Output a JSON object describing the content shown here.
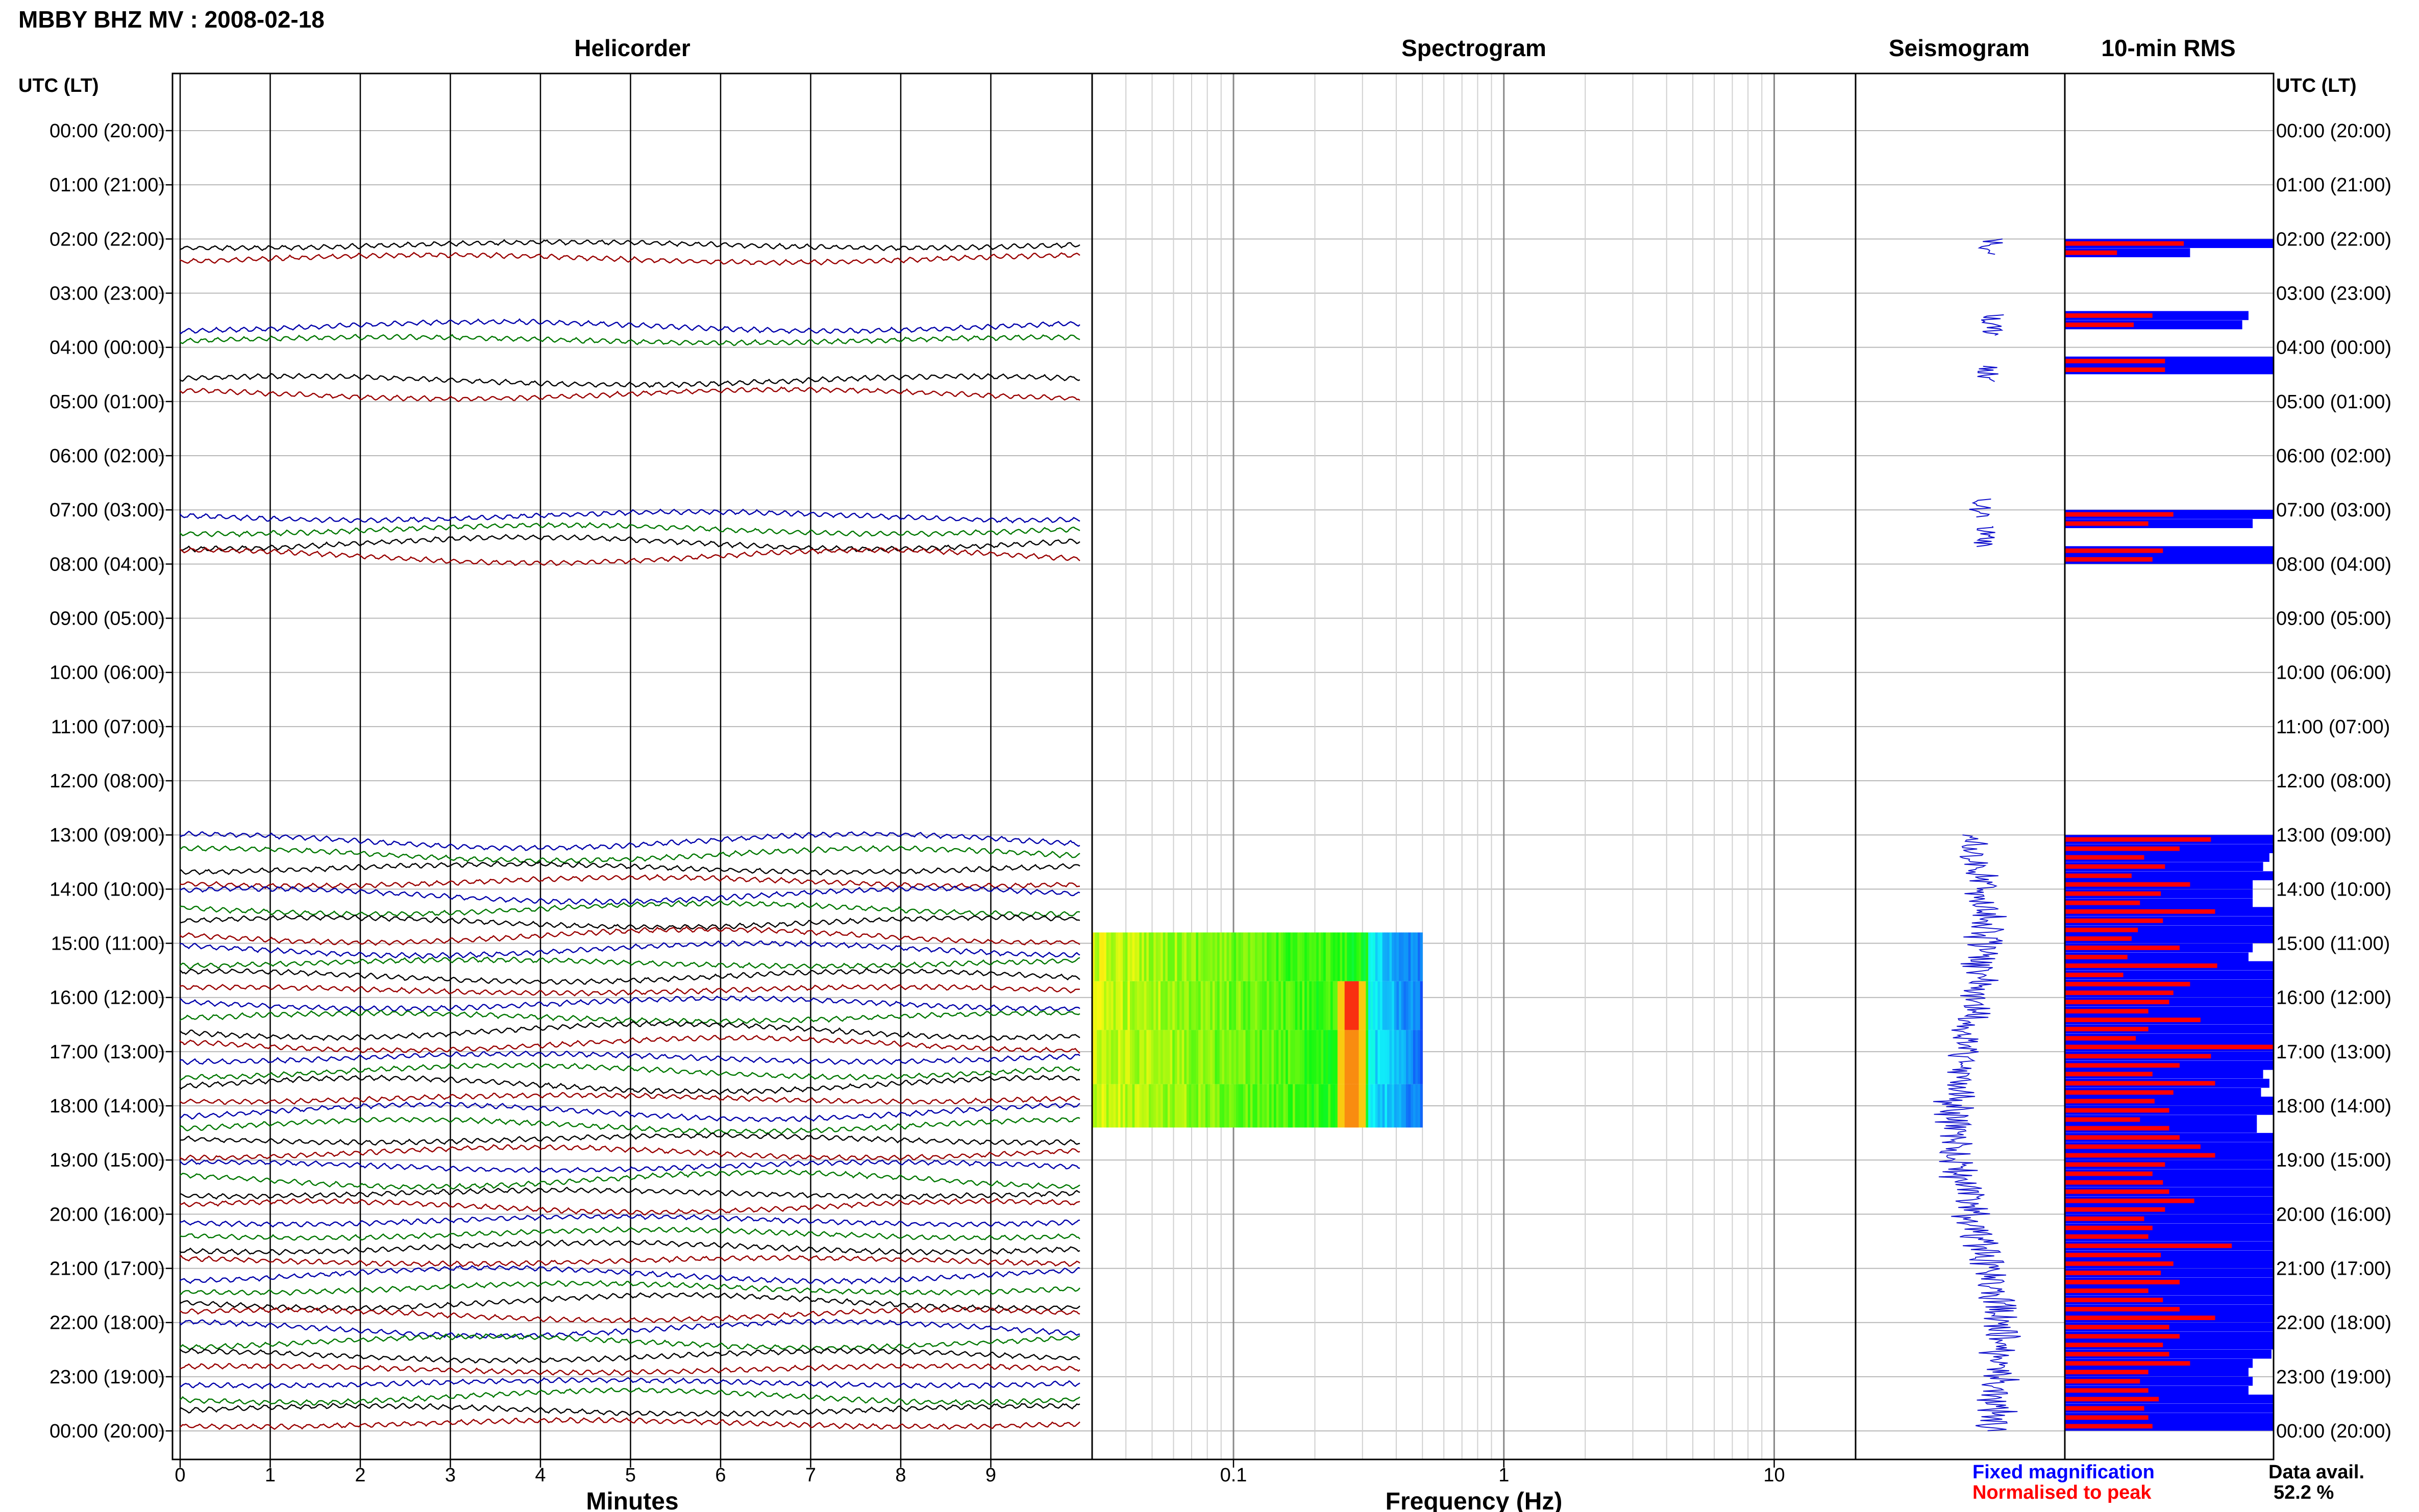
{
  "title": "MBBY BHZ MV : 2008-02-18",
  "panels": {
    "helicorder": "Helicorder",
    "spectrogram": "Spectrogram",
    "seismogram": "Seismogram",
    "rms": "10-min RMS"
  },
  "axis_titles": {
    "left": "UTC (LT)",
    "right": "UTC (LT)",
    "minutes": "Minutes",
    "frequency": "Frequency (Hz)"
  },
  "hour_labels": [
    "00:00 (20:00)",
    "01:00 (21:00)",
    "02:00 (22:00)",
    "03:00 (23:00)",
    "04:00 (00:00)",
    "05:00 (01:00)",
    "06:00 (02:00)",
    "07:00 (03:00)",
    "08:00 (04:00)",
    "09:00 (05:00)",
    "10:00 (06:00)",
    "11:00 (07:00)",
    "12:00 (08:00)",
    "13:00 (09:00)",
    "14:00 (10:00)",
    "15:00 (11:00)",
    "16:00 (12:00)",
    "17:00 (13:00)",
    "18:00 (14:00)",
    "19:00 (15:00)",
    "20:00 (16:00)",
    "21:00 (17:00)",
    "22:00 (18:00)",
    "23:00 (19:00)",
    "00:00 (20:00)"
  ],
  "minute_ticks": [
    "0",
    "1",
    "2",
    "3",
    "4",
    "5",
    "6",
    "7",
    "8",
    "9"
  ],
  "frequency_ticks": [
    "0.1",
    "1",
    "10"
  ],
  "legend": {
    "fixed": "Fixed magnification",
    "normalised": "Normalised to peak",
    "data_avail_label": "Data avail.",
    "data_avail_value": "52.2 %"
  },
  "colors": {
    "trace_cycle": [
      "#000000",
      "#990000",
      "#0000aa",
      "#007700"
    ],
    "fixed_magnification": "#0000ff",
    "normalised_to_peak": "#ff0000",
    "seismogram": "#1111cc"
  },
  "chart_data": {
    "type": "heatmap",
    "station": "MBBY BHZ MV",
    "date": "2008-02-18",
    "helicorder": {
      "x_range_minutes": [
        0,
        10
      ],
      "rows_with_data": [
        [
          2,
          2.5
        ],
        [
          3.5,
          4
        ],
        [
          4.5,
          5
        ],
        [
          7,
          7.5
        ],
        [
          7.5,
          8
        ],
        [
          13,
          24
        ]
      ]
    },
    "spectrogram": {
      "x_scale": "log",
      "x_range_hz": [
        0.03,
        20
      ],
      "data_freq_range_hz": [
        0.03,
        0.5
      ],
      "windows_hours": [
        [
          14.8,
          15.7
        ],
        [
          15.7,
          16.6
        ],
        [
          16.6,
          17.6
        ],
        [
          17.6,
          18.4
        ]
      ],
      "dominant_peak_hz": 0.27
    },
    "rms_10min": {
      "hours": [
        2.0,
        2.17,
        3.33,
        3.5,
        4.17,
        4.33,
        7.0,
        7.17,
        7.67,
        7.83,
        13.0,
        13.17,
        13.33,
        13.5,
        13.67,
        13.83,
        14.0,
        14.17,
        14.33,
        14.5,
        14.67,
        14.83,
        15.0,
        15.17,
        15.33,
        15.5,
        15.67,
        15.83,
        16.0,
        16.17,
        16.33,
        16.5,
        16.67,
        16.83,
        17.0,
        17.17,
        17.33,
        17.5,
        17.67,
        17.83,
        18.0,
        18.17,
        18.33,
        18.5,
        18.67,
        18.83,
        19.0,
        19.17,
        19.33,
        19.5,
        19.67,
        19.83,
        20.0,
        20.17,
        20.33,
        20.5,
        20.67,
        20.83,
        21.0,
        21.17,
        21.33,
        21.5,
        21.67,
        21.83,
        22.0,
        22.17,
        22.33,
        22.5,
        22.67,
        22.83,
        23.0,
        23.17,
        23.33,
        23.5,
        23.67,
        23.83
      ],
      "fixed_magnification": [
        1.0,
        0.6,
        0.88,
        0.85,
        1.0,
        1.0,
        1.0,
        0.9,
        1.0,
        1.0,
        1.0,
        1.0,
        0.98,
        0.95,
        1.0,
        0.9,
        0.9,
        0.9,
        1.0,
        1.0,
        1.0,
        1.0,
        0.9,
        0.88,
        1.0,
        1.0,
        1.0,
        1.0,
        1.0,
        1.0,
        1.0,
        1.0,
        1.0,
        1.0,
        1.0,
        1.0,
        0.95,
        0.98,
        0.94,
        1.0,
        1.0,
        0.92,
        0.92,
        1.0,
        1.0,
        1.0,
        1.0,
        1.0,
        1.0,
        1.0,
        1.0,
        1.0,
        1.0,
        1.0,
        1.0,
        1.0,
        1.0,
        1.0,
        1.0,
        1.0,
        1.0,
        1.0,
        1.0,
        1.0,
        1.0,
        1.0,
        1.0,
        0.99,
        0.9,
        0.88,
        0.9,
        0.88,
        1.0,
        1.0,
        1.0,
        1.0
      ],
      "normalised_to_peak": [
        0.57,
        0.25,
        0.42,
        0.33,
        0.48,
        0.48,
        0.52,
        0.4,
        0.47,
        0.42,
        0.7,
        0.55,
        0.38,
        0.48,
        0.32,
        0.6,
        0.46,
        0.36,
        0.72,
        0.47,
        0.35,
        0.32,
        0.55,
        0.3,
        0.73,
        0.28,
        0.6,
        0.52,
        0.5,
        0.4,
        0.65,
        0.4,
        0.34,
        1.0,
        0.7,
        0.55,
        0.42,
        0.72,
        0.52,
        0.43,
        0.5,
        0.36,
        0.5,
        0.55,
        0.65,
        0.72,
        0.48,
        0.42,
        0.47,
        0.5,
        0.62,
        0.48,
        0.38,
        0.42,
        0.4,
        0.8,
        0.46,
        0.52,
        0.46,
        0.55,
        0.4,
        0.47,
        0.55,
        0.72,
        0.5,
        0.55,
        0.47,
        0.5,
        0.6,
        0.4,
        0.36,
        0.4,
        0.45,
        0.38,
        0.4,
        0.42
      ]
    }
  }
}
